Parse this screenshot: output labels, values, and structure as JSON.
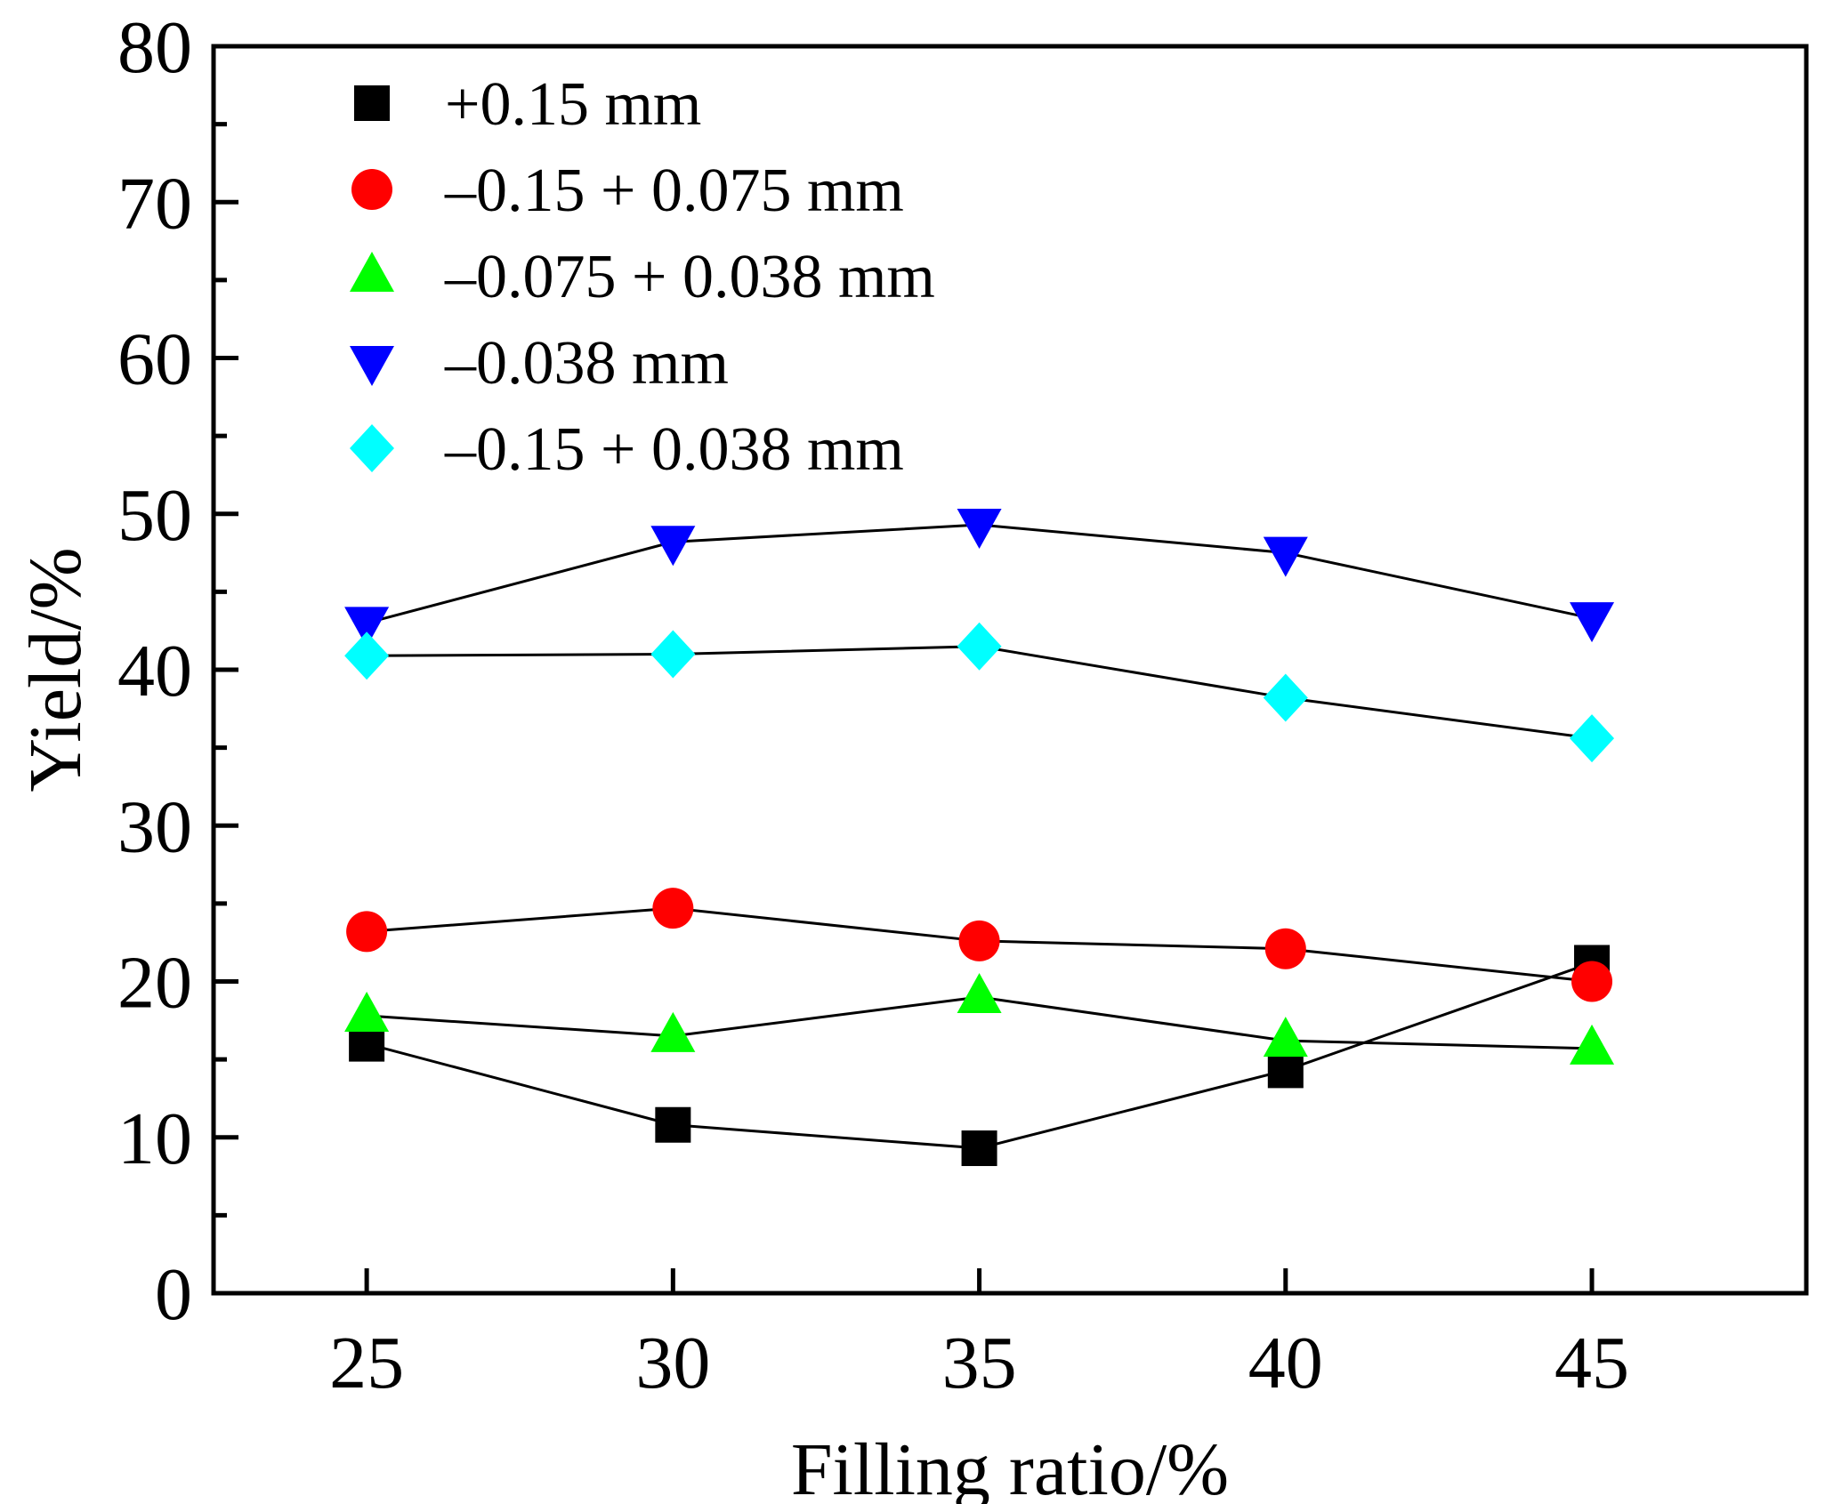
{
  "chart_data": {
    "type": "line",
    "title": "",
    "xlabel": "Filling ratio/%",
    "ylabel": "Yield/%",
    "categories": [
      "25",
      "30",
      "35",
      "40",
      "45"
    ],
    "x": [
      25,
      30,
      35,
      40,
      45
    ],
    "xlim": [
      22.5,
      48.5
    ],
    "ylim": [
      0,
      80
    ],
    "x_ticks": [
      25,
      30,
      35,
      40,
      45
    ],
    "y_ticks": [
      0,
      10,
      20,
      30,
      40,
      50,
      60,
      70,
      80
    ],
    "grid": false,
    "legend_position": "top-left",
    "series": [
      {
        "name": "+0.15 mm",
        "marker": "square",
        "color": "#000000",
        "values": [
          16.0,
          10.8,
          9.3,
          14.3,
          21.2
        ]
      },
      {
        "name": "–0.15 + 0.075 mm",
        "marker": "circle",
        "color": "#ff0000",
        "values": [
          23.2,
          24.7,
          22.6,
          22.1,
          20.0
        ]
      },
      {
        "name": "–0.075 + 0.038 mm",
        "marker": "triangle-up",
        "color": "#00ff00",
        "values": [
          17.8,
          16.5,
          19.0,
          16.2,
          15.7
        ]
      },
      {
        "name": "–0.038 mm",
        "marker": "triangle-down",
        "color": "#0000ff",
        "values": [
          43.0,
          48.2,
          49.3,
          47.5,
          43.3
        ]
      },
      {
        "name": "–0.15 + 0.038 mm",
        "marker": "diamond",
        "color": "#00ffff",
        "values": [
          40.9,
          41.0,
          41.5,
          38.2,
          35.6
        ]
      }
    ]
  }
}
